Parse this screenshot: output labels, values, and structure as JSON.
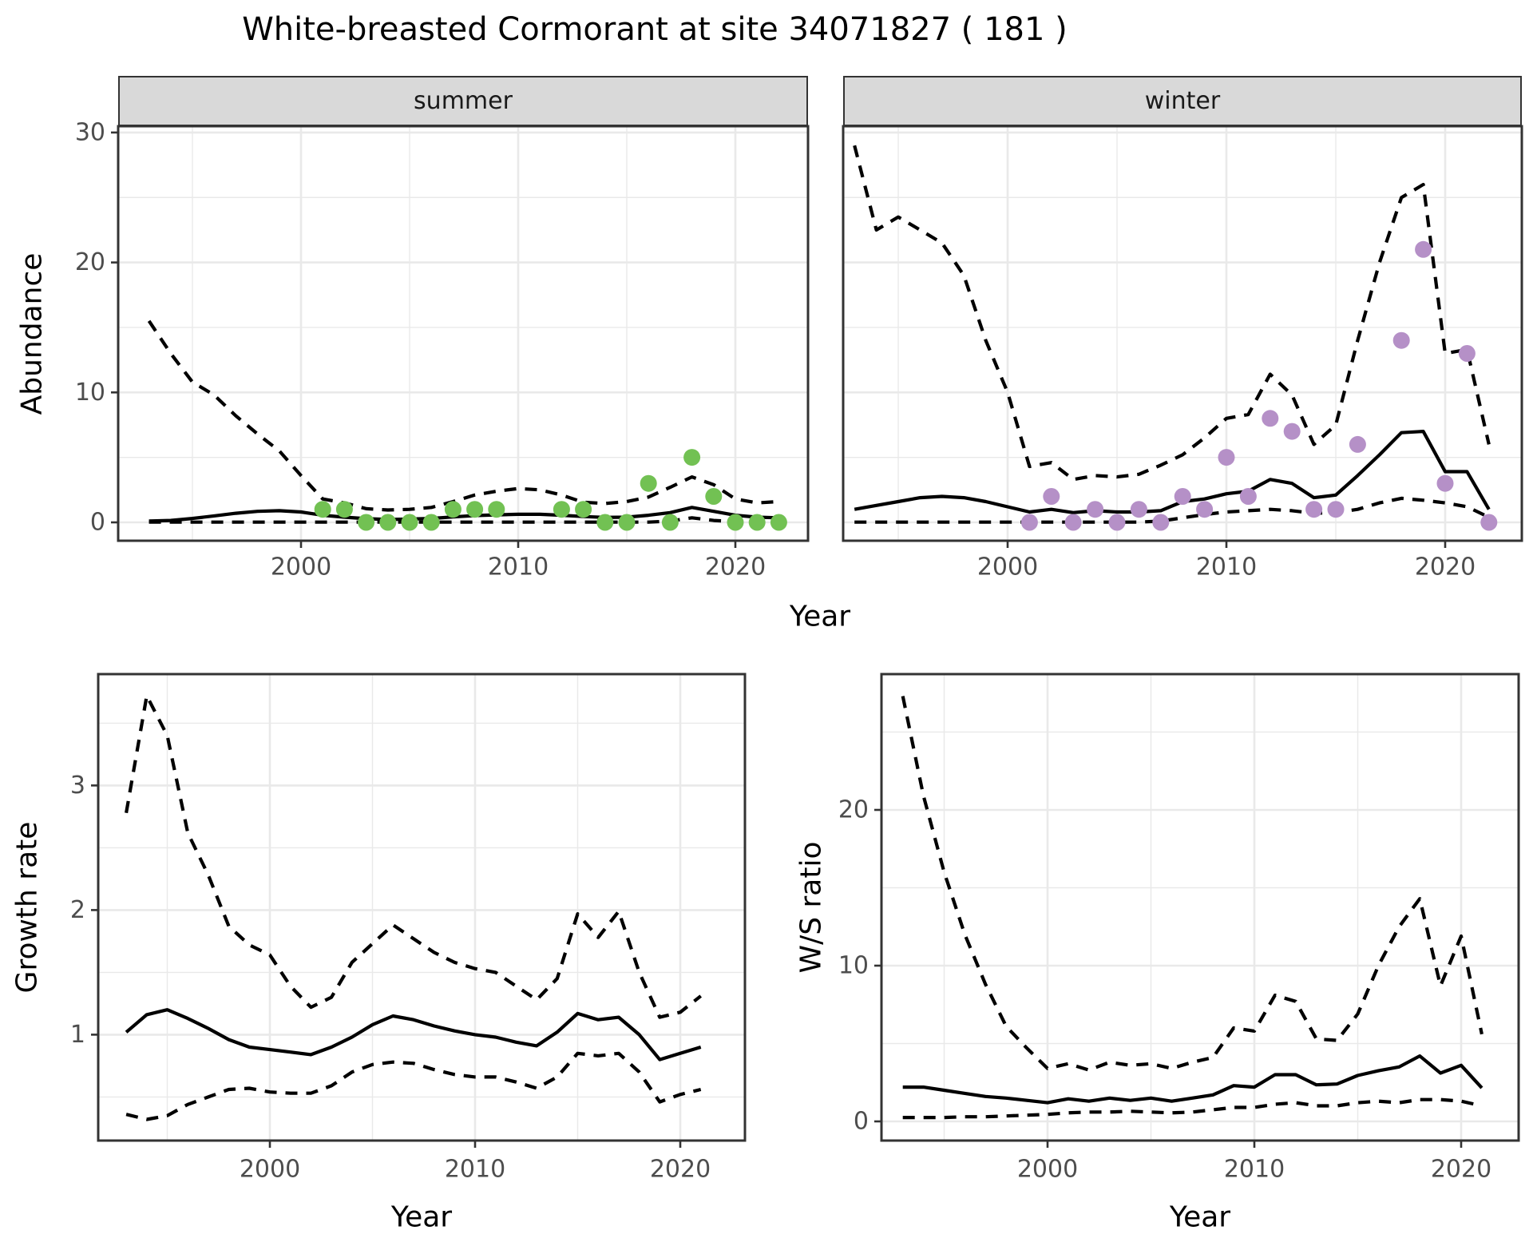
{
  "title": "White-breasted Cormorant at site 34071827 ( 181 )",
  "colors": {
    "summer_points": "#72c153",
    "winter_points": "#b590c7",
    "strip_background": "#d9d9d9",
    "panel_border": "#333333",
    "gridline": "#e9e9e9",
    "axis_text": "#4d4d4d",
    "line": "#000000"
  },
  "chart_data": [
    {
      "id": "abundance_summer",
      "type": "line",
      "facet": "summer",
      "xlabel": "Year",
      "ylabel": "Abundance",
      "xticks": [
        2000,
        2010,
        2020
      ],
      "yticks": [
        0,
        10,
        20,
        30
      ],
      "xlim": [
        1991.5,
        2023.5
      ],
      "ylim": [
        -1.5,
        30.5
      ],
      "x": [
        1993,
        1994,
        1995,
        1996,
        1997,
        1998,
        1999,
        2000,
        2001,
        2002,
        2003,
        2004,
        2005,
        2006,
        2007,
        2008,
        2009,
        2010,
        2011,
        2012,
        2013,
        2014,
        2015,
        2016,
        2017,
        2018,
        2019,
        2020,
        2021,
        2022
      ],
      "series": [
        {
          "name": "mean",
          "style": "solid",
          "values": [
            0.1,
            0.15,
            0.3,
            0.5,
            0.7,
            0.85,
            0.9,
            0.8,
            0.55,
            0.4,
            0.28,
            0.22,
            0.25,
            0.3,
            0.42,
            0.52,
            0.58,
            0.62,
            0.62,
            0.55,
            0.45,
            0.38,
            0.4,
            0.55,
            0.75,
            1.15,
            0.85,
            0.55,
            0.4,
            0.35
          ]
        },
        {
          "name": "upper_ci",
          "style": "dashed",
          "values": [
            15.5,
            13.0,
            10.8,
            9.8,
            8.2,
            6.8,
            5.5,
            3.6,
            1.8,
            1.5,
            1.05,
            0.95,
            1.0,
            1.15,
            1.6,
            2.1,
            2.4,
            2.6,
            2.5,
            2.1,
            1.55,
            1.45,
            1.6,
            1.95,
            2.7,
            3.5,
            2.9,
            1.8,
            1.5,
            1.6
          ]
        },
        {
          "name": "lower_ci",
          "style": "dashed",
          "values": [
            0.02,
            0.02,
            0.02,
            0.02,
            0.02,
            0.02,
            0.02,
            0.02,
            0.02,
            0.02,
            0.02,
            0.02,
            0.02,
            0.02,
            0.02,
            0.02,
            0.02,
            0.02,
            0.02,
            0.02,
            0.02,
            0.02,
            0.02,
            0.02,
            0.1,
            0.35,
            0.15,
            0.05,
            0.05,
            0.05
          ]
        }
      ],
      "points": {
        "label": "observed counts (summer)",
        "color": "#72c153",
        "x": [
          2001,
          2002,
          2003,
          2004,
          2005,
          2006,
          2007,
          2008,
          2009,
          2012,
          2013,
          2014,
          2015,
          2016,
          2017,
          2018,
          2019,
          2020,
          2021,
          2022
        ],
        "y": [
          1,
          1,
          0,
          0,
          0,
          0,
          1,
          1,
          1,
          1,
          1,
          0,
          0,
          3,
          0,
          5,
          2,
          0,
          0,
          0
        ]
      }
    },
    {
      "id": "abundance_winter",
      "type": "line",
      "facet": "winter",
      "xlabel": "Year",
      "ylabel": "Abundance",
      "xticks": [
        2000,
        2010,
        2020
      ],
      "yticks": [
        0,
        10,
        20,
        30
      ],
      "xlim": [
        1991.5,
        2023.5
      ],
      "ylim": [
        -1.5,
        30.5
      ],
      "x": [
        1993,
        1994,
        1995,
        1996,
        1997,
        1998,
        1999,
        2000,
        2001,
        2002,
        2003,
        2004,
        2005,
        2006,
        2007,
        2008,
        2009,
        2010,
        2011,
        2012,
        2013,
        2014,
        2015,
        2016,
        2017,
        2018,
        2019,
        2020,
        2021,
        2022
      ],
      "series": [
        {
          "name": "mean",
          "style": "solid",
          "values": [
            1.0,
            1.3,
            1.6,
            1.9,
            2.0,
            1.9,
            1.6,
            1.2,
            0.8,
            1.0,
            0.75,
            0.9,
            0.8,
            0.8,
            0.9,
            1.6,
            1.8,
            2.2,
            2.4,
            3.3,
            3.0,
            1.9,
            2.1,
            3.6,
            5.2,
            6.9,
            7.0,
            3.9,
            3.9,
            1.0
          ]
        },
        {
          "name": "upper_ci",
          "style": "dashed",
          "values": [
            29.0,
            22.5,
            23.5,
            22.5,
            21.5,
            19.0,
            14.0,
            10.0,
            4.3,
            4.6,
            3.3,
            3.6,
            3.5,
            3.7,
            4.4,
            5.2,
            6.5,
            8.0,
            8.3,
            11.4,
            9.8,
            6.0,
            7.5,
            14.0,
            20.0,
            25.0,
            26.0,
            13.0,
            13.3,
            6.0
          ]
        },
        {
          "name": "lower_ci",
          "style": "dashed",
          "values": [
            0.02,
            0.02,
            0.02,
            0.02,
            0.02,
            0.02,
            0.02,
            0.02,
            0.02,
            0.02,
            0.02,
            0.02,
            0.02,
            0.02,
            0.1,
            0.35,
            0.6,
            0.8,
            0.9,
            1.0,
            0.9,
            0.7,
            0.75,
            1.0,
            1.5,
            1.85,
            1.7,
            1.5,
            1.2,
            0.4
          ]
        }
      ],
      "points": {
        "label": "observed counts (winter)",
        "color": "#b590c7",
        "x": [
          2001,
          2002,
          2003,
          2004,
          2005,
          2006,
          2007,
          2008,
          2009,
          2010,
          2011,
          2012,
          2013,
          2014,
          2015,
          2016,
          2018,
          2019,
          2020,
          2021,
          2022
        ],
        "y": [
          0,
          2,
          0,
          1,
          0,
          1,
          0,
          2,
          1,
          5,
          2,
          8,
          7,
          1,
          1,
          6,
          14,
          21,
          3,
          13,
          0
        ]
      }
    },
    {
      "id": "growth_rate",
      "type": "line",
      "facet": null,
      "xlabel": "Year",
      "ylabel": "Growth rate",
      "xticks": [
        2000,
        2010,
        2020
      ],
      "yticks": [
        1,
        2,
        3
      ],
      "xlim": [
        1991.6,
        2022.4
      ],
      "ylim": [
        0.15,
        3.89
      ],
      "x": [
        1993,
        1994,
        1995,
        1996,
        1997,
        1998,
        1999,
        2000,
        2001,
        2002,
        2003,
        2004,
        2005,
        2006,
        2007,
        2008,
        2009,
        2010,
        2011,
        2012,
        2013,
        2014,
        2015,
        2016,
        2017,
        2018,
        2019,
        2020,
        2021
      ],
      "series": [
        {
          "name": "mean",
          "style": "solid",
          "values": [
            1.02,
            1.16,
            1.2,
            1.13,
            1.05,
            0.96,
            0.9,
            0.88,
            0.86,
            0.84,
            0.9,
            0.98,
            1.08,
            1.15,
            1.12,
            1.07,
            1.03,
            1.0,
            0.98,
            0.94,
            0.91,
            1.02,
            1.17,
            1.12,
            1.14,
            1.0,
            0.8,
            0.85,
            0.9
          ]
        },
        {
          "name": "upper_ci",
          "style": "dashed",
          "values": [
            2.78,
            3.72,
            3.4,
            2.62,
            2.28,
            1.87,
            1.72,
            1.64,
            1.39,
            1.22,
            1.3,
            1.58,
            1.73,
            1.88,
            1.77,
            1.66,
            1.58,
            1.53,
            1.5,
            1.39,
            1.28,
            1.45,
            1.97,
            1.78,
            1.99,
            1.5,
            1.14,
            1.18,
            1.31
          ]
        },
        {
          "name": "lower_ci",
          "style": "dashed",
          "values": [
            0.36,
            0.32,
            0.35,
            0.44,
            0.5,
            0.56,
            0.57,
            0.54,
            0.53,
            0.53,
            0.59,
            0.7,
            0.76,
            0.78,
            0.77,
            0.72,
            0.68,
            0.66,
            0.66,
            0.62,
            0.57,
            0.66,
            0.85,
            0.83,
            0.85,
            0.7,
            0.46,
            0.52,
            0.56
          ]
        }
      ],
      "points": null
    },
    {
      "id": "ws_ratio",
      "type": "line",
      "facet": null,
      "xlabel": "Year",
      "ylabel": "W/S ratio",
      "xticks": [
        2000,
        2010,
        2020
      ],
      "yticks": [
        0,
        10,
        20
      ],
      "xlim": [
        1991.6,
        2022.4
      ],
      "ylim": [
        -1.2,
        29.9
      ],
      "x": [
        1993,
        1994,
        1995,
        1996,
        1997,
        1998,
        1999,
        2000,
        2001,
        2002,
        2003,
        2004,
        2005,
        2006,
        2007,
        2008,
        2009,
        2010,
        2011,
        2012,
        2013,
        2014,
        2015,
        2016,
        2017,
        2018,
        2019,
        2020,
        2021
      ],
      "series": [
        {
          "name": "mean",
          "style": "solid",
          "values": [
            2.2,
            2.2,
            2.0,
            1.8,
            1.6,
            1.5,
            1.35,
            1.2,
            1.45,
            1.3,
            1.5,
            1.35,
            1.5,
            1.3,
            1.5,
            1.7,
            2.3,
            2.2,
            3.0,
            3.0,
            2.35,
            2.4,
            2.95,
            3.25,
            3.5,
            4.2,
            3.1,
            3.6,
            2.15
          ]
        },
        {
          "name": "upper_ci",
          "style": "dashed",
          "values": [
            27.3,
            20.9,
            16.0,
            12.0,
            8.8,
            6.1,
            4.7,
            3.4,
            3.7,
            3.3,
            3.8,
            3.6,
            3.7,
            3.4,
            3.8,
            4.1,
            6.0,
            5.8,
            8.1,
            7.7,
            5.3,
            5.2,
            6.9,
            10.0,
            12.5,
            14.3,
            8.7,
            11.9,
            5.6
          ]
        },
        {
          "name": "lower_ci",
          "style": "dashed",
          "values": [
            0.25,
            0.25,
            0.25,
            0.3,
            0.3,
            0.35,
            0.4,
            0.45,
            0.55,
            0.6,
            0.6,
            0.65,
            0.6,
            0.55,
            0.6,
            0.75,
            0.9,
            0.9,
            1.1,
            1.2,
            1.0,
            1.0,
            1.2,
            1.3,
            1.2,
            1.4,
            1.4,
            1.3,
            1.0
          ]
        }
      ],
      "points": null
    }
  ]
}
